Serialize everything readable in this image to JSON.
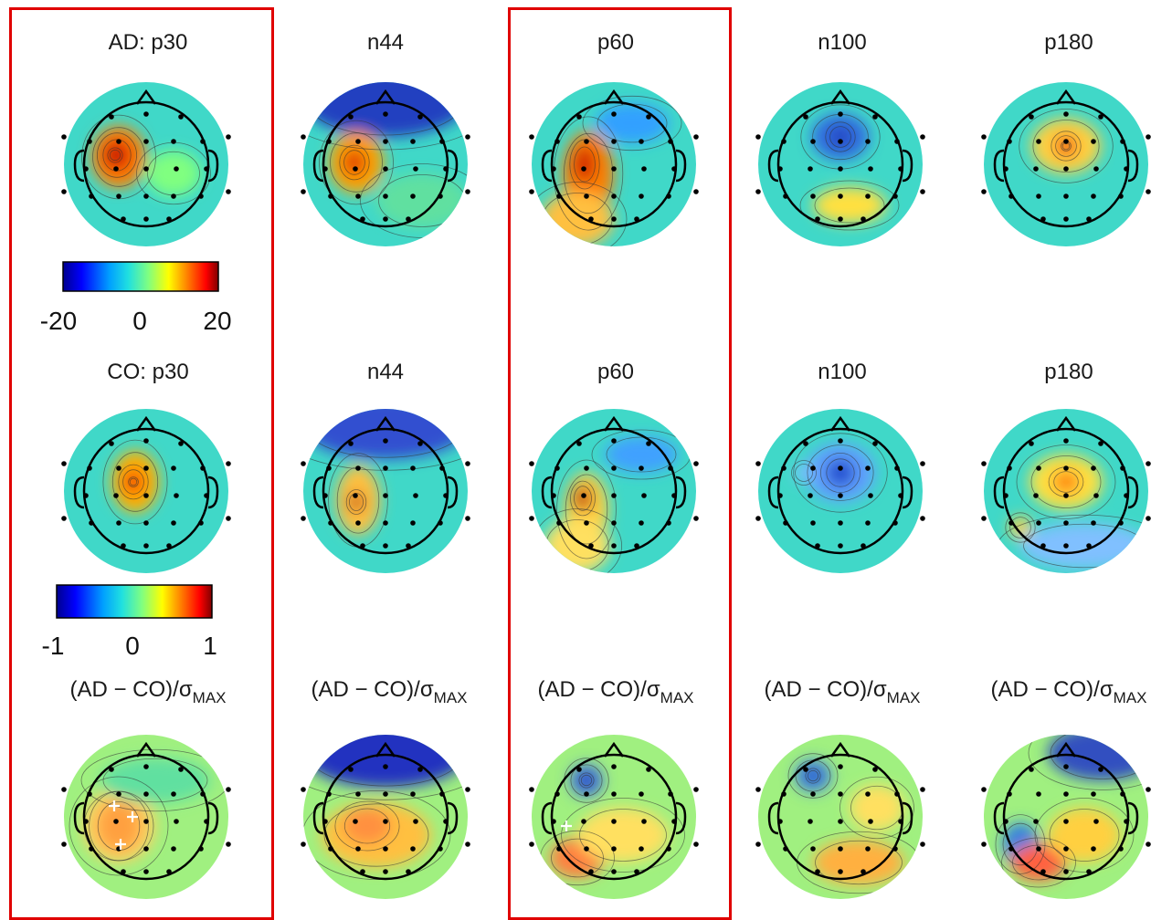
{
  "rows": [
    {
      "titles": [
        {
          "text": "AD: p30"
        },
        {
          "text": "n44"
        },
        {
          "text": "p60"
        },
        {
          "text": "n100"
        },
        {
          "text": "p180"
        }
      ]
    },
    {
      "titles": [
        {
          "text": "CO: p30"
        },
        {
          "text": "n44"
        },
        {
          "text": "p60"
        },
        {
          "text": "n100"
        },
        {
          "text": "p180"
        }
      ]
    },
    {
      "titles": [
        {
          "text": "(AD − CO)/σ",
          "sub": "MAX"
        },
        {
          "text": "(AD − CO)/σ",
          "sub": "MAX"
        },
        {
          "text": "(AD − CO)/σ",
          "sub": "MAX"
        },
        {
          "text": "(AD − CO)/σ",
          "sub": "MAX"
        },
        {
          "text": "(AD − CO)/σ",
          "sub": "MAX"
        }
      ]
    }
  ],
  "colorbars": [
    {
      "ticks": [
        "-20",
        "0",
        "20"
      ]
    },
    {
      "ticks": [
        "-1",
        "0",
        "1"
      ]
    }
  ],
  "colors": {
    "highlight": "#e00000",
    "colormap": [
      "#00008f",
      "#0000ff",
      "#00a0ff",
      "#20e0e0",
      "#80ff80",
      "#ffff00",
      "#ff8000",
      "#ff0000",
      "#800000"
    ]
  }
}
